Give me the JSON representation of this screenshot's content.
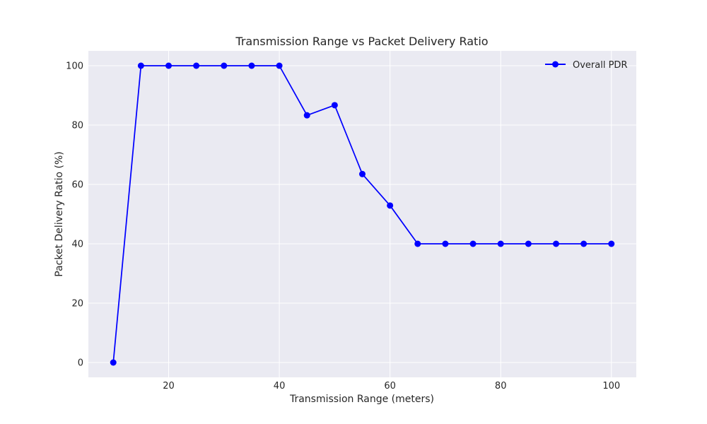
{
  "chart_data": {
    "type": "line",
    "title": "Transmission Range vs Packet Delivery Ratio",
    "xlabel": "Transmission Range (meters)",
    "ylabel": "Packet Delivery Ratio (%)",
    "x": [
      10,
      15,
      20,
      25,
      30,
      35,
      40,
      45,
      50,
      55,
      60,
      65,
      70,
      75,
      80,
      85,
      90,
      95,
      100
    ],
    "series": [
      {
        "name": "Overall PDR",
        "color": "#0000ff",
        "marker": "circle",
        "values": [
          0,
          100,
          100,
          100,
          100,
          100,
          100,
          83.3,
          86.7,
          63.5,
          52.9,
          40,
          40,
          40,
          40,
          40,
          40,
          40,
          40
        ]
      }
    ],
    "xticks": [
      20,
      40,
      60,
      80,
      100
    ],
    "yticks": [
      0,
      20,
      40,
      60,
      80,
      100
    ],
    "xlim": [
      5.5,
      104.5
    ],
    "ylim": [
      -5,
      105
    ],
    "grid": true,
    "legend_position": "top-right",
    "plot_background": "#eaeaf2"
  }
}
